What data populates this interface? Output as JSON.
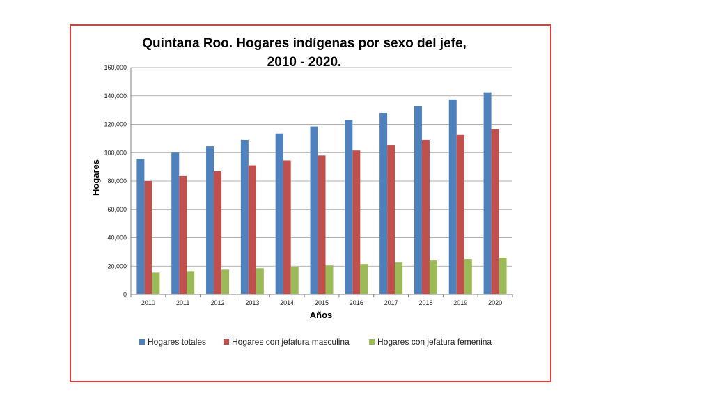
{
  "chart_data": {
    "type": "bar",
    "title_line1": "Quintana Roo. Hogares indígenas por sexo del jefe,",
    "title_line2": "2010 - 2020.",
    "xlabel": "Años",
    "ylabel": "Hogares",
    "ylim": [
      0,
      160000
    ],
    "yticks": [
      "0",
      "20,000",
      "40,000",
      "60,000",
      "80,000",
      "100,000",
      "120,000",
      "140,000",
      "160,000"
    ],
    "categories": [
      "2010",
      "2011",
      "2012",
      "2013",
      "2014",
      "2015",
      "2016",
      "2017",
      "2018",
      "2019",
      "2020"
    ],
    "grid": true,
    "legend_position": "bottom",
    "series": [
      {
        "name": "Hogares totales",
        "color": "#4f81bd",
        "values": [
          95500,
          100000,
          104500,
          109000,
          113500,
          118500,
          123000,
          128000,
          133000,
          137500,
          142500
        ]
      },
      {
        "name": "Hogares con jefatura masculina",
        "color": "#c0504d",
        "values": [
          80000,
          83500,
          87000,
          91000,
          94500,
          98000,
          101500,
          105500,
          109000,
          112500,
          116500
        ]
      },
      {
        "name": "Hogares con jefatura femenina",
        "color": "#9bbb59",
        "values": [
          15500,
          16500,
          17500,
          18500,
          19500,
          20500,
          21500,
          22500,
          24000,
          25000,
          26000
        ]
      }
    ]
  }
}
